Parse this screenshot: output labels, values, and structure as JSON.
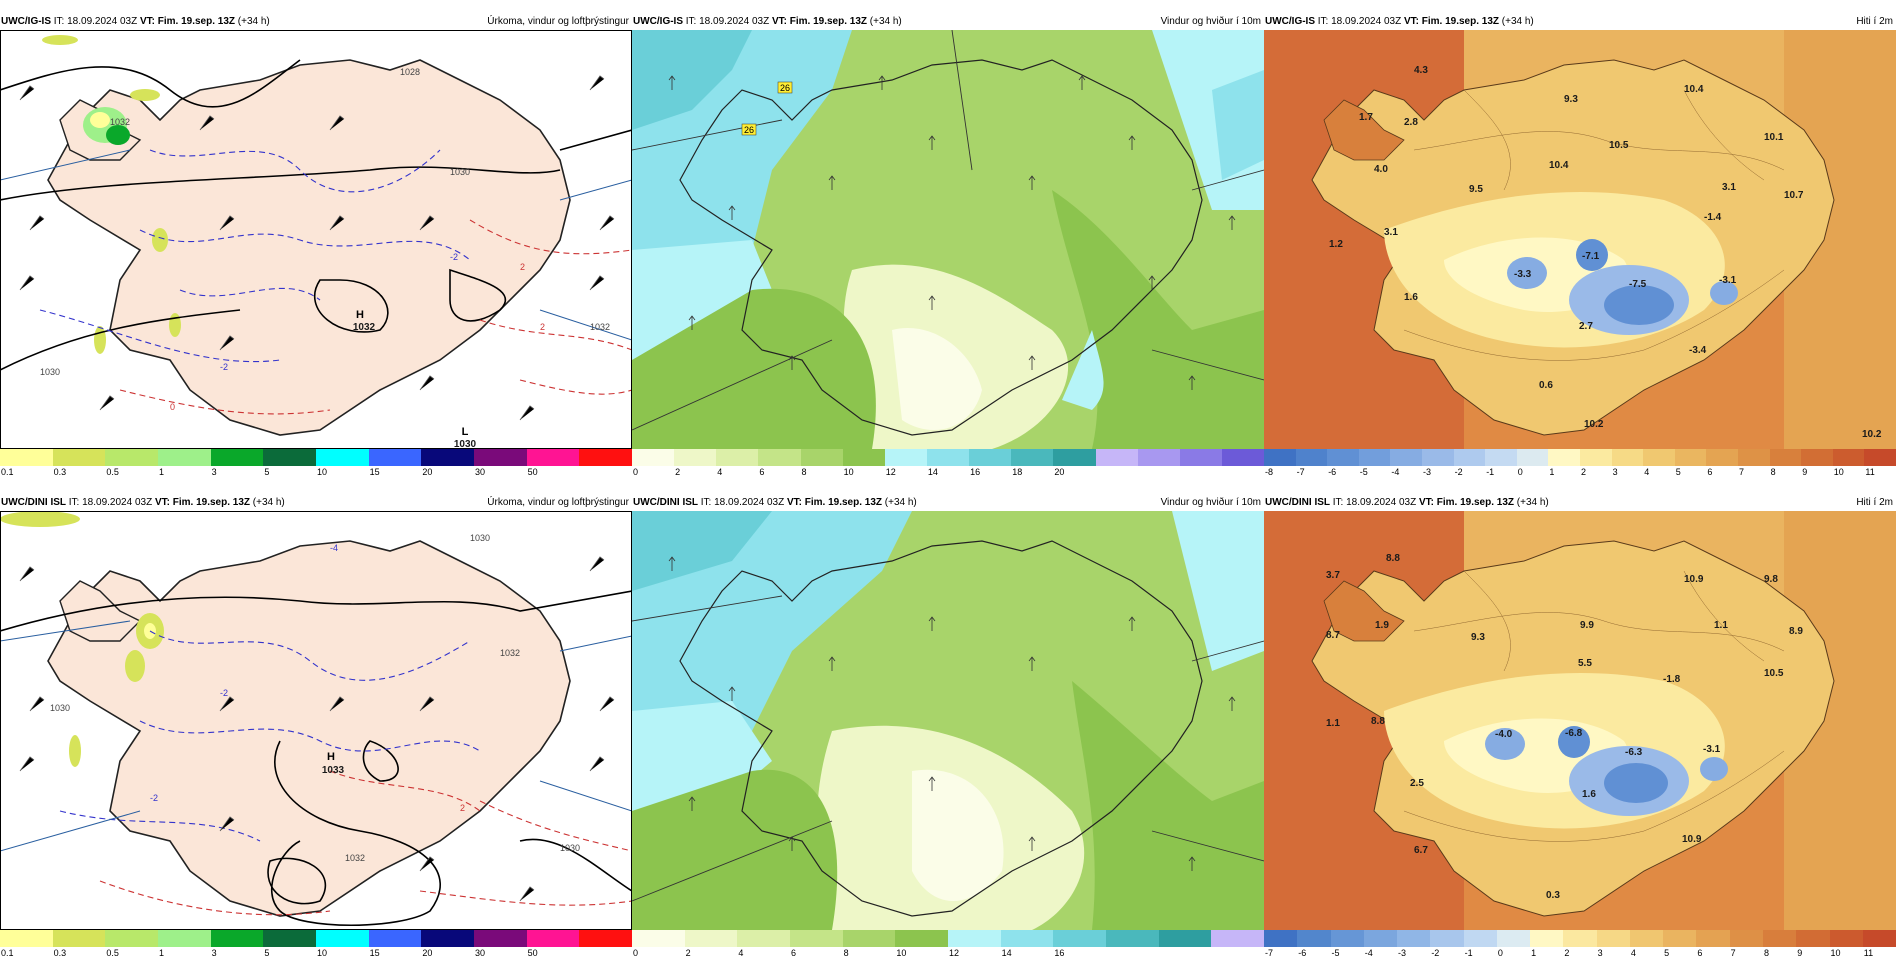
{
  "runs": [
    {
      "model": "UWC/IG-IS",
      "init": "IT: 18.09.2024 03Z",
      "valid": "VT: Fim. 19.sep. 13Z",
      "lead": "(+34 h)",
      "precip": {
        "title": "Úrkoma, vindur og loftþrýstingur",
        "high": {
          "letter": "H",
          "value": "1032"
        },
        "low": {
          "letter": "L",
          "value": "1030"
        },
        "isobars": [
          "1028",
          "1030",
          "1030",
          "1032",
          "1032"
        ],
        "temp_labels": [
          "-2",
          "2",
          "0",
          "-2",
          "2"
        ]
      },
      "wind": {
        "title": "Vindur og hviður í 10m",
        "gust_labels": [
          "26",
          "26"
        ]
      },
      "temp": {
        "title": "Hiti í 2m",
        "values": [
          "4.3",
          "1.7",
          "2.8",
          "9.3",
          "10.4",
          "10.1",
          "10.5",
          "10.4",
          "4.0",
          "9.5",
          "3.1",
          "10.7",
          "-1.4",
          "3.1",
          "1.2",
          "-3.3",
          "-7.1",
          "-7.5",
          "-3.1",
          "1.6",
          "2.7",
          "-3.4",
          "0.6",
          "10.2",
          "10.2"
        ]
      }
    },
    {
      "model": "UWC/DINI ISL",
      "init": "IT: 18.09.2024 03Z",
      "valid": "VT: Fim. 19.sep. 13Z",
      "lead": "(+34 h)",
      "precip": {
        "title": "Úrkoma, vindur og loftþrýstingur",
        "high": {
          "letter": "H",
          "value": "1033"
        },
        "isobars": [
          "1030",
          "1032",
          "1032",
          "1030",
          "1030"
        ],
        "temp_labels": [
          "-2",
          "-4",
          "2",
          "-2"
        ]
      },
      "wind": {
        "title": "Vindur og hviður í 10m",
        "gust_labels": []
      },
      "temp": {
        "title": "Hiti í 2m",
        "values": [
          "3.7",
          "8.8",
          "10.9",
          "9.8",
          "8.7",
          "1.9",
          "9.3",
          "9.9",
          "1.1",
          "8.9",
          "5.5",
          "-1.8",
          "10.5",
          "1.1",
          "8.8",
          "-4.0",
          "-6.8",
          "-6.3",
          "-3.1",
          "2.5",
          "1.6",
          "6.7",
          "10.9",
          "0.3"
        ]
      }
    }
  ],
  "legends": {
    "precip": {
      "ticks": [
        "0.1",
        "0.3",
        "0.5",
        "1",
        "3",
        "5",
        "10",
        "15",
        "20",
        "30",
        "50"
      ],
      "colors": [
        "#ffff99",
        "#d6e35a",
        "#b8e86a",
        "#9ef08a",
        "#0aa82a",
        "#0b6b3a",
        "#00ffff",
        "#3a66ff",
        "#08087a",
        "#7a0a7a",
        "#ff1493",
        "#ff1010"
      ]
    },
    "wind_top": {
      "ticks": [
        "0",
        "2",
        "4",
        "6",
        "8",
        "10",
        "12",
        "14",
        "16",
        "18",
        "20"
      ],
      "colors": [
        "#fbfde8",
        "#eef7c8",
        "#dcefa8",
        "#c4e488",
        "#a8d46a",
        "#8cc44e",
        "#b6f4f8",
        "#8ee2ec",
        "#6acfd8",
        "#4ab8bc",
        "#2e9ea0",
        "#c6b6f8",
        "#a898f0",
        "#8a7ae6",
        "#6c5ad8"
      ]
    },
    "wind_bottom": {
      "ticks": [
        "0",
        "2",
        "4",
        "6",
        "8",
        "10",
        "12",
        "14",
        "16"
      ],
      "colors": [
        "#fbfde8",
        "#eef7c8",
        "#dcefa8",
        "#c4e488",
        "#a8d46a",
        "#8cc44e",
        "#b6f4f8",
        "#8ee2ec",
        "#6acfd8",
        "#4ab8bc",
        "#2e9ea0",
        "#c6b6f8"
      ]
    },
    "temp_top": {
      "ticks": [
        "-8",
        "-7",
        "-6",
        "-5",
        "-4",
        "-3",
        "-2",
        "-1",
        "0",
        "1",
        "2",
        "3",
        "4",
        "5",
        "6",
        "7",
        "8",
        "9",
        "10",
        "11"
      ],
      "colors": [
        "#3f72c4",
        "#4f82cc",
        "#6090d4",
        "#729edc",
        "#86ace2",
        "#9abae8",
        "#aecaee",
        "#c4daf2",
        "#dceaf0",
        "#fff8c4",
        "#fbeaa0",
        "#f6da86",
        "#f0c870",
        "#eab660",
        "#e4a452",
        "#de9246",
        "#d8803c",
        "#d26e34",
        "#cc5c2e",
        "#c64a2a"
      ]
    },
    "temp_bottom": {
      "ticks": [
        "-7",
        "-6",
        "-5",
        "-4",
        "-3",
        "-2",
        "-1",
        "0",
        "1",
        "2",
        "3",
        "4",
        "5",
        "6",
        "7",
        "8",
        "9",
        "10",
        "11"
      ],
      "colors": [
        "#3f72c4",
        "#5286cc",
        "#6696d6",
        "#7ba6de",
        "#90b6e6",
        "#a8c6ec",
        "#c0d8f2",
        "#dcebf2",
        "#fff8c4",
        "#fbe8a0",
        "#f6d886",
        "#f0c670",
        "#eab460",
        "#e4a252",
        "#de9046",
        "#d87e3c",
        "#d26c34",
        "#cc5a2e",
        "#c64a2a"
      ]
    }
  }
}
